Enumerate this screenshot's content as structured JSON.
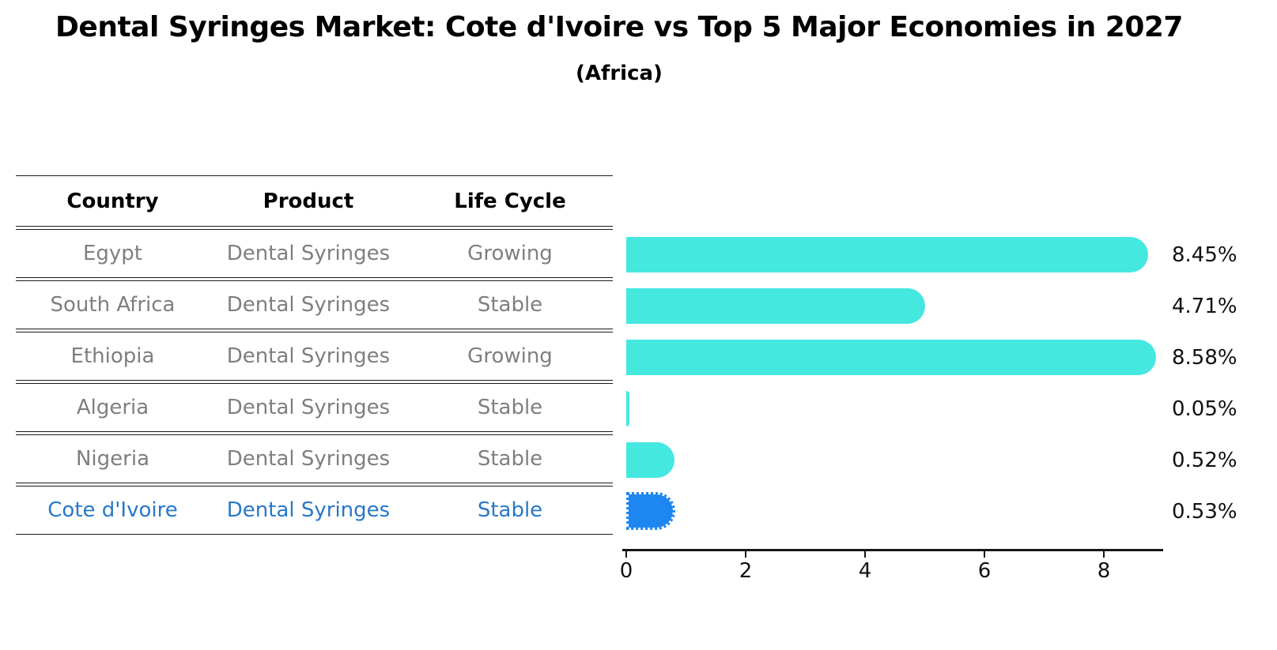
{
  "title": "Dental Syringes Market: Cote d'Ivoire vs Top 5 Major Economies in 2027",
  "subtitle": "(Africa)",
  "table": {
    "headers": [
      "Country",
      "Product",
      "Life Cycle"
    ],
    "rows": [
      {
        "country": "Egypt",
        "product": "Dental Syringes",
        "life_cycle": "Growing",
        "highlight": false
      },
      {
        "country": "South Africa",
        "product": "Dental Syringes",
        "life_cycle": "Stable",
        "highlight": false
      },
      {
        "country": "Ethiopia",
        "product": "Dental Syringes",
        "life_cycle": "Growing",
        "highlight": false
      },
      {
        "country": "Algeria",
        "product": "Dental Syringes",
        "life_cycle": "Stable",
        "highlight": false
      },
      {
        "country": "Nigeria",
        "product": "Dental Syringes",
        "life_cycle": "Stable",
        "highlight": false
      },
      {
        "country": "Cote d'Ivoire",
        "product": "Dental Syringes",
        "life_cycle": "Stable",
        "highlight": true
      }
    ]
  },
  "chart_data": {
    "type": "bar",
    "orientation": "horizontal",
    "categories": [
      "Egypt",
      "South Africa",
      "Ethiopia",
      "Algeria",
      "Nigeria",
      "Cote d'Ivoire"
    ],
    "values": [
      8.45,
      4.71,
      8.58,
      0.05,
      0.52,
      0.53
    ],
    "value_labels": [
      "8.45%",
      "4.71%",
      "8.58%",
      "0.05%",
      "0.52%",
      "0.53%"
    ],
    "x_ticks": [
      "0",
      "2",
      "4",
      "6",
      "8"
    ],
    "xlim": [
      0,
      9
    ],
    "grid": false,
    "legend": false,
    "title": "Dental Syringes Market: Cote d'Ivoire vs Top 5 Major Economies in 2027 (Africa)",
    "xlabel": "",
    "ylabel": "",
    "bar_color": "#45E8DF",
    "highlight_index": 5,
    "highlight_color": "#1E86F0",
    "highlight_style": "dotted-outline"
  },
  "colors": {
    "background": "#FFFFFF",
    "bar_cyan": "#45E8DF",
    "bar_blue": "#1E86F0",
    "row_text_gray": "#7F7F7F",
    "highlight_text_blue": "#2878C8",
    "line_black": "#1A1A1A",
    "text_black": "#000000"
  }
}
